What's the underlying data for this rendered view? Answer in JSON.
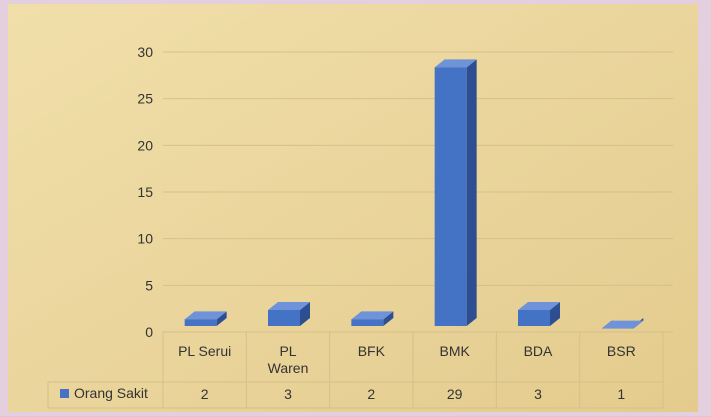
{
  "chart_data": {
    "type": "bar",
    "style": "3d-column with data table",
    "categories": [
      [
        "PL Serui"
      ],
      [
        "PL",
        "Waren"
      ],
      [
        "BFK"
      ],
      [
        "BMK"
      ],
      [
        "BDA"
      ],
      [
        "BSR"
      ]
    ],
    "series": [
      {
        "name": "Orang Sakit",
        "values": [
          2,
          3,
          2,
          29,
          3,
          1
        ],
        "color": "#4472c4"
      }
    ],
    "ylim": [
      0,
      30
    ],
    "yticks": [
      0,
      5,
      10,
      15,
      20,
      25,
      30
    ],
    "grid": true,
    "legend": "data-table"
  },
  "colors": {
    "background_parchment": "#ecd9a6",
    "frame": "#e3cfdd",
    "bar_front": "#4472c4",
    "bar_side": "#2d4f91",
    "bar_top": "#6f93d8"
  }
}
